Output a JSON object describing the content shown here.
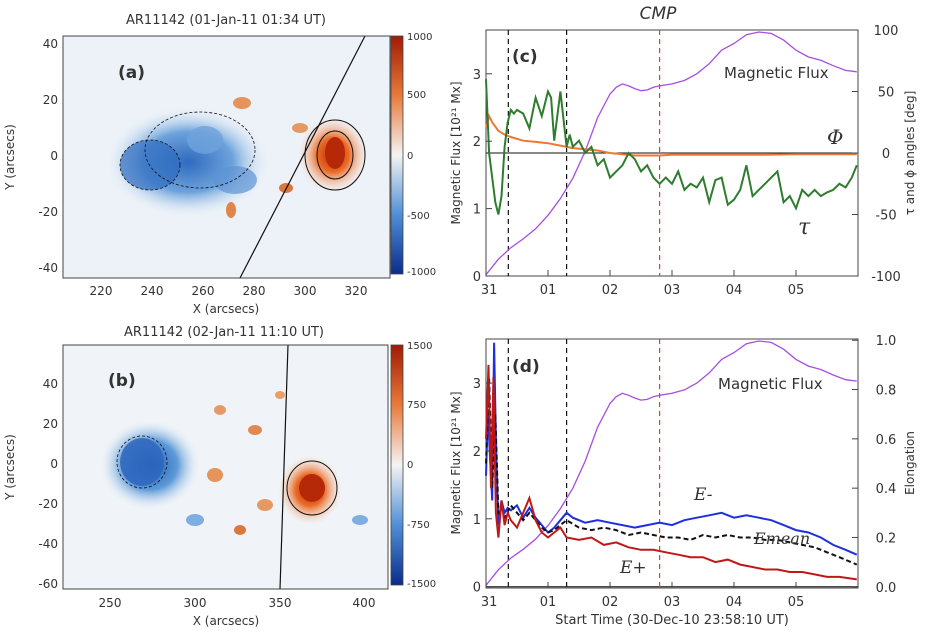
{
  "chart_data": [
    {
      "panel": "(a)",
      "type": "heatmap",
      "title": "AR11142 (01-Jan-11 01:34 UT)",
      "xlabel": "X (arcsecs)",
      "ylabel": "Y (arcsecs)",
      "xlim": [
        210,
        337
      ],
      "ylim": [
        -44,
        43
      ],
      "xticks": [
        "220",
        "240",
        "260",
        "280",
        "300",
        "320"
      ],
      "yticks": [
        "40",
        "20",
        "0",
        "-20",
        "-40"
      ],
      "colorbar": {
        "ticks": [
          "1000",
          "500",
          "0",
          "-500",
          "-1000"
        ],
        "range": [
          -1000,
          1000
        ]
      },
      "colors": {
        "negative": "#1e5fb8",
        "positive": "#c0400f"
      }
    },
    {
      "panel": "(b)",
      "type": "heatmap",
      "title": "AR11142 (02-Jan-11 11:10 UT)",
      "xlabel": "X (arcsecs)",
      "ylabel": "Y (arcsecs)",
      "xlim": [
        222,
        415
      ],
      "ylim": [
        -64,
        58
      ],
      "xticks": [
        "250",
        "300",
        "350",
        "400"
      ],
      "yticks": [
        "40",
        "20",
        "0",
        "-20",
        "-40",
        "-60"
      ],
      "colorbar": {
        "ticks": [
          "1500",
          "750",
          "0",
          "-750",
          "-1500"
        ],
        "range": [
          -1500,
          1500
        ]
      },
      "colors": {
        "negative": "#1e5fb8",
        "positive": "#c0400f"
      }
    },
    {
      "panel": "(c)",
      "type": "line",
      "annotation": "CMP",
      "ylabel": "Magnetic Flux [10²¹ Mx]",
      "y2label": "τ and ϕ angles [deg]",
      "xticks": [
        "31",
        "01",
        "02",
        "03",
        "04",
        "05"
      ],
      "yticks": [
        "0",
        "1",
        "2",
        "3"
      ],
      "y2ticks": [
        "100",
        "50",
        "0",
        "-50",
        "-100"
      ],
      "xlim": [
        0,
        6
      ],
      "ylim": [
        0,
        3.65
      ],
      "y2lim": [
        -100,
        100
      ],
      "vlines": {
        "black": [
          0.36,
          1.3
        ],
        "red": [
          2.8
        ]
      },
      "series": [
        {
          "name": "Magnetic Flux",
          "axis": "left",
          "color": "#a64fe0",
          "x": [
            0,
            0.2,
            0.4,
            0.6,
            0.8,
            1.0,
            1.2,
            1.4,
            1.6,
            1.8,
            2.0,
            2.1,
            2.2,
            2.3,
            2.4,
            2.5,
            2.6,
            2.7,
            2.8,
            3.0,
            3.2,
            3.4,
            3.6,
            3.8,
            4.0,
            4.2,
            4.4,
            4.6,
            4.8,
            5.0,
            5.2,
            5.4,
            5.6,
            5.8,
            5.98
          ],
          "y": [
            0.02,
            0.25,
            0.42,
            0.55,
            0.7,
            0.9,
            1.15,
            1.45,
            1.85,
            2.35,
            2.7,
            2.8,
            2.85,
            2.82,
            2.78,
            2.75,
            2.76,
            2.8,
            2.82,
            2.85,
            2.9,
            3.0,
            3.15,
            3.35,
            3.45,
            3.58,
            3.62,
            3.6,
            3.5,
            3.35,
            3.25,
            3.2,
            3.12,
            3.05,
            3.03
          ]
        },
        {
          "name": "Φ",
          "axis": "right",
          "color": "#ee7733",
          "x": [
            0,
            0.05,
            0.1,
            0.2,
            0.3,
            0.4,
            0.6,
            0.8,
            1.0,
            1.2,
            1.4,
            1.6,
            1.8,
            2.0,
            2.2,
            2.4,
            2.6,
            2.8,
            3.0,
            3.5,
            4.0,
            4.5,
            5.0,
            5.5,
            5.98
          ],
          "y": [
            20,
            30,
            25,
            18,
            15,
            13,
            10,
            9,
            8,
            6,
            4,
            3,
            2,
            0,
            -1,
            -2,
            -2,
            -2,
            -1.5,
            -1.5,
            -1.5,
            -1.5,
            -1,
            -1,
            -1
          ]
        },
        {
          "name": "τ",
          "axis": "right",
          "color": "#2e7d2e",
          "x": [
            0,
            0.05,
            0.1,
            0.15,
            0.2,
            0.25,
            0.3,
            0.35,
            0.4,
            0.45,
            0.5,
            0.6,
            0.7,
            0.8,
            0.9,
            1.0,
            1.05,
            1.1,
            1.2,
            1.3,
            1.35,
            1.4,
            1.5,
            1.6,
            1.7,
            1.8,
            1.9,
            2.0,
            2.1,
            2.2,
            2.3,
            2.4,
            2.5,
            2.6,
            2.7,
            2.8,
            2.9,
            3.0,
            3.1,
            3.2,
            3.3,
            3.4,
            3.5,
            3.6,
            3.7,
            3.8,
            3.9,
            4.0,
            4.1,
            4.2,
            4.3,
            4.4,
            4.5,
            4.6,
            4.7,
            4.8,
            4.9,
            5.0,
            5.1,
            5.2,
            5.3,
            5.4,
            5.5,
            5.6,
            5.7,
            5.8,
            5.9,
            5.98
          ],
          "y": [
            60,
            0,
            -20,
            -40,
            -50,
            -35,
            5,
            25,
            35,
            32,
            35,
            32,
            20,
            45,
            30,
            50,
            45,
            10,
            50,
            5,
            15,
            5,
            10,
            0,
            5,
            -10,
            -5,
            -20,
            -15,
            -10,
            0,
            -5,
            -15,
            -10,
            -20,
            -25,
            -20,
            -25,
            -15,
            -30,
            -25,
            -28,
            -20,
            -40,
            -22,
            -20,
            -42,
            -38,
            -30,
            -10,
            -35,
            -30,
            -25,
            -20,
            -15,
            -40,
            -35,
            -45,
            -30,
            -35,
            -30,
            -35,
            -32,
            -30,
            -25,
            -28,
            -20,
            -10
          ]
        }
      ]
    },
    {
      "panel": "(d)",
      "type": "line",
      "xlabel": "Start Time (30-Dec-10 23:58:10 UT)",
      "ylabel": "Magnetic Flux [10²¹ Mx]",
      "y2label": "Elongation",
      "xticks": [
        "31",
        "01",
        "02",
        "03",
        "04",
        "05"
      ],
      "yticks": [
        "0",
        "1",
        "2",
        "3"
      ],
      "y2ticks": [
        "0.0",
        "0.2",
        "0.4",
        "0.6",
        "0.8",
        "1.0"
      ],
      "xlim": [
        0,
        6
      ],
      "ylim": [
        -0.02,
        3.65
      ],
      "y2lim": [
        -0.005,
        1.005
      ],
      "vlines": {
        "black": [
          0.36,
          1.3
        ],
        "red": [
          2.8
        ]
      },
      "series": [
        {
          "name": "Magnetic Flux",
          "axis": "left",
          "color": "#a64fe0",
          "x": [
            0,
            0.2,
            0.4,
            0.6,
            0.8,
            1.0,
            1.2,
            1.4,
            1.6,
            1.8,
            2.0,
            2.1,
            2.2,
            2.3,
            2.4,
            2.5,
            2.6,
            2.7,
            2.8,
            3.0,
            3.2,
            3.4,
            3.6,
            3.8,
            4.0,
            4.2,
            4.4,
            4.6,
            4.8,
            5.0,
            5.2,
            5.4,
            5.6,
            5.8,
            5.98
          ],
          "y": [
            0.02,
            0.25,
            0.42,
            0.55,
            0.7,
            0.9,
            1.15,
            1.45,
            1.85,
            2.35,
            2.7,
            2.8,
            2.85,
            2.82,
            2.78,
            2.75,
            2.76,
            2.8,
            2.82,
            2.85,
            2.9,
            3.0,
            3.15,
            3.35,
            3.45,
            3.58,
            3.62,
            3.6,
            3.5,
            3.35,
            3.25,
            3.2,
            3.12,
            3.05,
            3.03
          ]
        },
        {
          "name": "E-",
          "axis": "right",
          "color": "#1f2fe0",
          "x": [
            0,
            0.03,
            0.06,
            0.1,
            0.13,
            0.16,
            0.2,
            0.25,
            0.3,
            0.35,
            0.4,
            0.5,
            0.6,
            0.7,
            0.8,
            0.9,
            1.0,
            1.1,
            1.2,
            1.3,
            1.4,
            1.6,
            1.8,
            2.0,
            2.2,
            2.4,
            2.6,
            2.8,
            3.0,
            3.2,
            3.4,
            3.6,
            3.8,
            4.0,
            4.2,
            4.4,
            4.6,
            4.8,
            5.0,
            5.2,
            5.4,
            5.6,
            5.8,
            5.98
          ],
          "y": [
            0.45,
            0.72,
            0.55,
            0.35,
            0.99,
            0.6,
            0.25,
            0.35,
            0.3,
            0.32,
            0.31,
            0.33,
            0.28,
            0.32,
            0.28,
            0.25,
            0.22,
            0.24,
            0.27,
            0.3,
            0.28,
            0.26,
            0.27,
            0.26,
            0.25,
            0.24,
            0.25,
            0.26,
            0.25,
            0.27,
            0.28,
            0.29,
            0.3,
            0.28,
            0.29,
            0.28,
            0.27,
            0.25,
            0.23,
            0.22,
            0.2,
            0.17,
            0.15,
            0.13
          ]
        },
        {
          "name": "E_mean",
          "axis": "right",
          "color": "#111111",
          "x": [
            0,
            0.05,
            0.1,
            0.15,
            0.2,
            0.3,
            0.4,
            0.5,
            0.6,
            0.7,
            0.8,
            0.9,
            1.0,
            1.1,
            1.2,
            1.3,
            1.5,
            1.7,
            1.9,
            2.1,
            2.3,
            2.5,
            2.7,
            2.9,
            3.1,
            3.3,
            3.5,
            3.7,
            3.9,
            4.1,
            4.3,
            4.5,
            4.7,
            4.9,
            5.1,
            5.3,
            5.5,
            5.7,
            5.98
          ],
          "y": [
            0.5,
            0.85,
            0.4,
            0.7,
            0.3,
            0.28,
            0.33,
            0.3,
            0.27,
            0.3,
            0.27,
            0.24,
            0.22,
            0.23,
            0.25,
            0.27,
            0.24,
            0.23,
            0.24,
            0.23,
            0.21,
            0.22,
            0.21,
            0.2,
            0.2,
            0.19,
            0.21,
            0.2,
            0.21,
            0.2,
            0.2,
            0.19,
            0.19,
            0.18,
            0.17,
            0.16,
            0.14,
            0.12,
            0.09
          ]
        },
        {
          "name": "E+",
          "axis": "right",
          "color": "#c01818",
          "x": [
            0,
            0.04,
            0.08,
            0.12,
            0.16,
            0.2,
            0.25,
            0.3,
            0.35,
            0.4,
            0.5,
            0.6,
            0.7,
            0.8,
            0.9,
            1.0,
            1.1,
            1.2,
            1.3,
            1.5,
            1.7,
            1.9,
            2.1,
            2.3,
            2.5,
            2.7,
            2.9,
            3.1,
            3.3,
            3.5,
            3.7,
            3.9,
            4.1,
            4.3,
            4.5,
            4.7,
            4.9,
            5.1,
            5.3,
            5.5,
            5.7,
            5.98
          ],
          "y": [
            0.6,
            0.9,
            0.4,
            0.85,
            0.3,
            0.2,
            0.35,
            0.25,
            0.3,
            0.27,
            0.24,
            0.3,
            0.36,
            0.27,
            0.22,
            0.2,
            0.22,
            0.24,
            0.2,
            0.19,
            0.2,
            0.17,
            0.18,
            0.16,
            0.15,
            0.15,
            0.14,
            0.13,
            0.12,
            0.12,
            0.1,
            0.11,
            0.09,
            0.08,
            0.07,
            0.07,
            0.06,
            0.06,
            0.05,
            0.04,
            0.04,
            0.03
          ]
        }
      ],
      "labels": {
        "e_minus": "E-",
        "e_mean": "Emean",
        "e_plus": "E+"
      }
    }
  ],
  "annotations": {
    "cmp": "CMP",
    "c_magnetic_flux": "Magnetic Flux",
    "d_magnetic_flux": "Magnetic Flux",
    "phi": "Φ",
    "tau": "τ"
  }
}
